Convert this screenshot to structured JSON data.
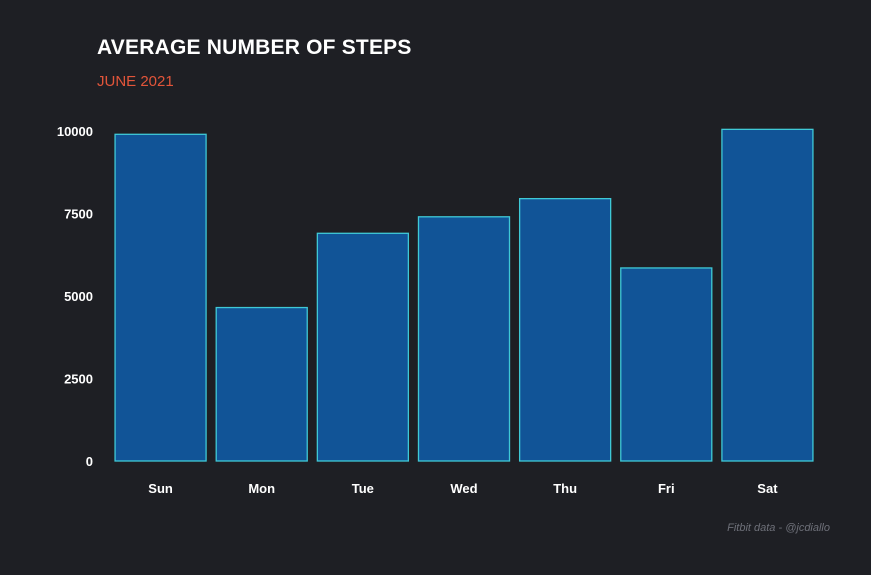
{
  "chart_data": {
    "type": "bar",
    "title": "AVERAGE NUMBER OF STEPS",
    "subtitle": "JUNE 2021",
    "caption": "Fitbit data - @jcdiallo",
    "categories": [
      "Sun",
      "Mon",
      "Tue",
      "Wed",
      "Thu",
      "Fri",
      "Sat"
    ],
    "values": [
      9900,
      4650,
      6900,
      7400,
      7950,
      5850,
      10050
    ],
    "ylim": [
      0,
      10000
    ],
    "yticks": [
      0,
      2500,
      5000,
      7500,
      10000
    ],
    "ytick_labels": [
      "0",
      "2500",
      "5000",
      "7500",
      "10000"
    ],
    "grid": false,
    "legend": "none",
    "colors": {
      "background": "#1e1f24",
      "bar_fill": "#115497",
      "bar_stroke": "#3fc9d6",
      "title": "#ffffff",
      "subtitle": "#e2553a",
      "caption": "#6e7079",
      "tick_text": "#ffffff"
    }
  }
}
